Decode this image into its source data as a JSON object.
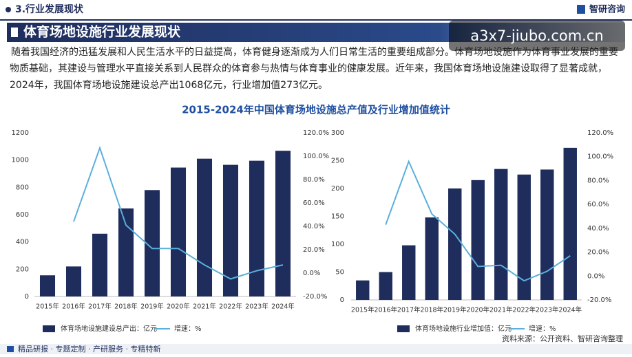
{
  "section": "3.行业发展现状",
  "logo": "智研咨询",
  "banner": "体育场地设施行业发展现状",
  "watermark": "a3x7-jiubo.com.cn",
  "paragraph": "随着我国经济的迅猛发展和人民生活水平的日益提高，体育健身逐渐成为人们日常生活的重要组成部分。体育场地设施作为体育事业发展的重要物质基础，其建设与管理水平直接关系到人民群众的体育参与热情与体育事业的健康发展。近年来，我国体育场地设施建设取得了显著成就，2024年，我国体育场地设施建设总产出1068亿元，行业增加值273亿元。",
  "chart_title": "2015-2024年中国体育场地设施总产值及行业增加值统计",
  "footer": "精品研报 · 专题定制 · 产研服务 · 专精特新",
  "source": "资料来源：公开资料、智研咨询整理",
  "chart_data": [
    {
      "type": "bar",
      "categories": [
        "2015年",
        "2016年",
        "2017年",
        "2018年",
        "2019年",
        "2020年",
        "2021年",
        "2022年",
        "2023年",
        "2024年"
      ],
      "series": [
        {
          "name": "体育场地设施建设总产出：亿元",
          "color": "#1f2d5c",
          "values": [
            155,
            220,
            460,
            645,
            780,
            945,
            1010,
            965,
            995,
            1068
          ]
        },
        {
          "name": "增速：%",
          "color": "#5bafdc",
          "axis": "y2",
          "values": [
            null,
            44,
            107,
            41,
            21,
            21,
            7,
            -5,
            2,
            7
          ]
        }
      ],
      "ylim": [
        0,
        1200
      ],
      "yticks": [
        0,
        200,
        400,
        600,
        800,
        1000,
        1200
      ],
      "y2lim": [
        -20,
        120
      ],
      "y2ticks": [
        {
          "value": -20,
          "label": "-20.0%"
        },
        {
          "value": 0,
          "label": "0.0%"
        },
        {
          "value": 20,
          "label": "20.0%"
        },
        {
          "value": 40,
          "label": "40.0%"
        },
        {
          "value": 60,
          "label": "60.0%"
        },
        {
          "value": 80,
          "label": "80.0%"
        },
        {
          "value": 100,
          "label": "100.0%"
        },
        {
          "value": 120,
          "label": "120.0%"
        }
      ]
    },
    {
      "type": "bar",
      "categories": [
        "2015年",
        "2016年",
        "2017年",
        "2018年",
        "2019年",
        "2020年",
        "2021年",
        "2022年",
        "2023年",
        "2024年"
      ],
      "series": [
        {
          "name": "体育场地设施行业增加值：亿元",
          "color": "#1f2d5c",
          "values": [
            35,
            50,
            98,
            148,
            200,
            215,
            235,
            225,
            234,
            273
          ]
        },
        {
          "name": "增速：%",
          "color": "#5bafdc",
          "axis": "y2",
          "values": [
            null,
            43,
            96,
            52,
            35,
            8,
            9,
            -4,
            4,
            17
          ]
        }
      ],
      "ylim": [
        0,
        300
      ],
      "yticks": [
        0,
        50,
        100,
        150,
        200,
        250,
        300
      ],
      "y2lim": [
        -20,
        120
      ],
      "y2ticks": [
        {
          "value": -20,
          "label": "-20.0%"
        },
        {
          "value": 0,
          "label": "0.0%"
        },
        {
          "value": 20,
          "label": "20.0%"
        },
        {
          "value": 40,
          "label": "40.0%"
        },
        {
          "value": 60,
          "label": "60.0%"
        },
        {
          "value": 80,
          "label": "80.0%"
        },
        {
          "value": 100,
          "label": "100.0%"
        },
        {
          "value": 120,
          "label": "120.0%"
        }
      ]
    }
  ]
}
